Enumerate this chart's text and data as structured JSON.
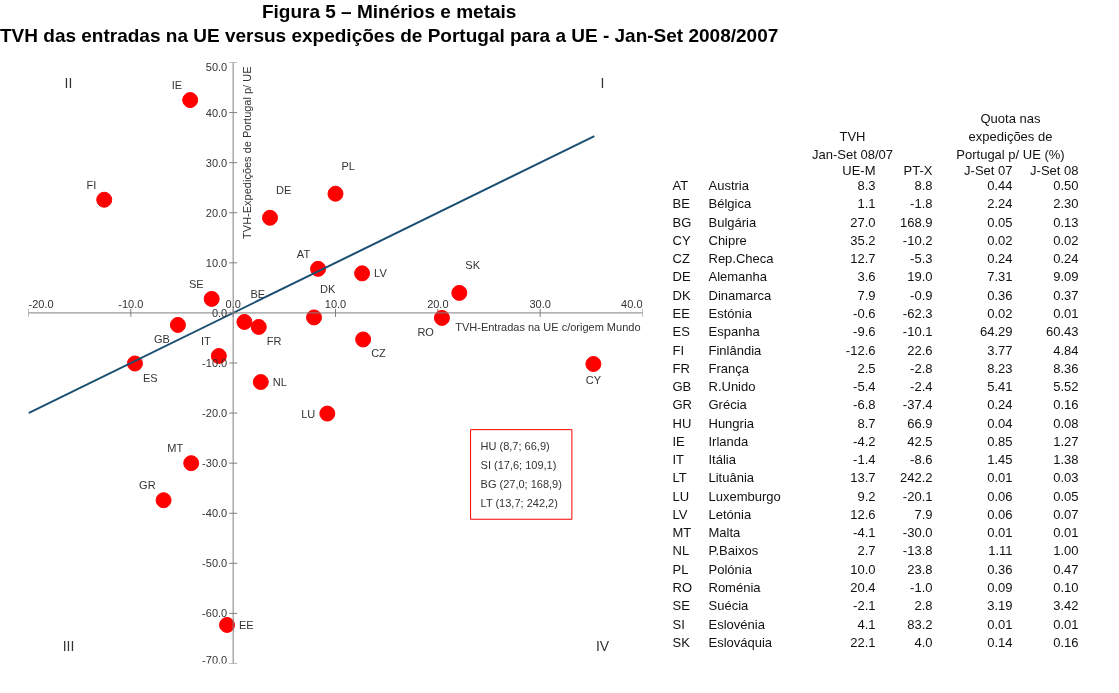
{
  "chart_data": [
    {
      "type": "scatter",
      "title": "Figura 5 – Minérios e metais",
      "subtitle": "TVH das entradas na UE versus expedições de Portugal para a UE - Jan-Set 2008/2007",
      "xlabel": "TVH-Entradas na UE c/origem Mundo",
      "ylabel": "TVH-Expedições de Portugal p/ UE",
      "xlim": [
        -20,
        40
      ],
      "ylim": [
        -70,
        50
      ],
      "xticks": [
        {
          "value": -20,
          "label": "-20.0"
        },
        {
          "value": -10,
          "label": "-10.0"
        },
        {
          "value": 0,
          "label": "0.0"
        },
        {
          "value": 10,
          "label": "10.0"
        },
        {
          "value": 20,
          "label": "20.0"
        },
        {
          "value": 30,
          "label": "30.0"
        },
        {
          "value": 40,
          "label": "40.0"
        }
      ],
      "yticks": [
        {
          "value": -70,
          "label": "-70.0"
        },
        {
          "value": -60,
          "label": "-60.0"
        },
        {
          "value": -50,
          "label": "-50.0"
        },
        {
          "value": -40,
          "label": "-40.0"
        },
        {
          "value": -30,
          "label": "-30.0"
        },
        {
          "value": -20,
          "label": "-20.0"
        },
        {
          "value": -10,
          "label": "-10.0"
        },
        {
          "value": 0,
          "label": "0.0"
        },
        {
          "value": 10,
          "label": "10.0"
        },
        {
          "value": 20,
          "label": "20.0"
        },
        {
          "value": 30,
          "label": "30.0"
        },
        {
          "value": 40,
          "label": "40.0"
        },
        {
          "value": 50,
          "label": "50.0"
        }
      ],
      "grid": false,
      "annotations": [
        "I",
        "II",
        "III",
        "IV",
        "HU (8,7; 66,9)\nSI (17,6; 109,1)\nBG (27,0; 168,9)\nLT (13,7; 242,2)"
      ],
      "series": [
        {
          "color": "#ff0000",
          "x": [
            8.3,
            1.1,
            35.2,
            12.7,
            3.6,
            7.9,
            -0.6,
            -9.6,
            -12.6,
            2.5,
            -5.4,
            -6.8,
            -4.2,
            -1.4,
            9.2,
            12.6,
            -4.1,
            2.7,
            10.0,
            20.4,
            -2.1,
            22.1
          ],
          "values": [
            8.8,
            -1.8,
            -10.2,
            -5.3,
            19.0,
            -0.9,
            -62.3,
            -10.1,
            22.6,
            -2.8,
            -2.4,
            -37.4,
            42.5,
            -8.6,
            -20.1,
            7.9,
            -30.0,
            -13.8,
            23.8,
            -1.0,
            2.8,
            4.0
          ],
          "value_labels": [
            "AT",
            "BE",
            "CY",
            "CZ",
            "DE",
            "DK",
            "EE",
            "ES",
            "FI",
            "FR",
            "GB",
            "GR",
            "IE",
            "IT",
            "LU",
            "LV",
            "MT",
            "NL",
            "PL",
            "RO",
            "SE",
            "SK"
          ]
        },
        {
          "type": "line",
          "color": "#1b4f72",
          "x": [
            -20,
            35.3
          ],
          "values": [
            -20,
            35.3
          ]
        }
      ]
    },
    {
      "type": "other",
      "annotations": [
        "TVH\nJan-Set 08/07",
        "Quota nas\nexpedições de\nPortugal p/ UE (%)"
      ],
      "categories": [
        "AT",
        "BE",
        "BG",
        "CY",
        "CZ",
        "DE",
        "DK",
        "EE",
        "ES",
        "FI",
        "FR",
        "GB",
        "GR",
        "HU",
        "IE",
        "IT",
        "LT",
        "LU",
        "LV",
        "MT",
        "NL",
        "PL",
        "RO",
        "SE",
        "SI",
        "SK"
      ],
      "y2_categories": [
        "Austria",
        "Bélgica",
        "Bulgária",
        "Chipre",
        "Rep.Checa",
        "Alemanha",
        "Dinamarca",
        "Estónia",
        "Espanha",
        "Finlândia",
        "França",
        "R.Unido",
        "Grécia",
        "Hungria",
        "Irlanda",
        "Itália",
        "Lituânia",
        "Luxemburgo",
        "Letónia",
        "Malta",
        "P.Baixos",
        "Polónia",
        "Roménia",
        "Suécia",
        "Eslovénia",
        "Eslováquia"
      ],
      "series": [
        {
          "name": "UE-M",
          "values": [
            8.3,
            1.1,
            27.0,
            35.2,
            12.7,
            3.6,
            7.9,
            -0.6,
            -9.6,
            -12.6,
            2.5,
            -5.4,
            -6.8,
            8.7,
            -4.2,
            -1.4,
            13.7,
            9.2,
            12.6,
            -4.1,
            2.7,
            10.0,
            20.4,
            -2.1,
            4.1,
            22.1
          ],
          "value_labels": [
            "8.3",
            "1.1",
            "27.0",
            "35.2",
            "12.7",
            "3.6",
            "7.9",
            "-0.6",
            "-9.6",
            "-12.6",
            "2.5",
            "-5.4",
            "-6.8",
            "8.7",
            "-4.2",
            "-1.4",
            "13.7",
            "9.2",
            "12.6",
            "-4.1",
            "2.7",
            "10.0",
            "20.4",
            "-2.1",
            "4.1",
            "22.1"
          ]
        },
        {
          "name": "PT-X",
          "values": [
            8.8,
            -1.8,
            168.9,
            -10.2,
            -5.3,
            19.0,
            -0.9,
            -62.3,
            -10.1,
            22.6,
            -2.8,
            -2.4,
            -37.4,
            66.9,
            42.5,
            -8.6,
            242.2,
            -20.1,
            7.9,
            -30.0,
            -13.8,
            23.8,
            -1.0,
            2.8,
            83.2,
            4.0
          ],
          "value_labels": [
            "8.8",
            "-1.8",
            "168.9",
            "-10.2",
            "-5.3",
            "19.0",
            "-0.9",
            "-62.3",
            "-10.1",
            "22.6",
            "-2.8",
            "-2.4",
            "-37.4",
            "66.9",
            "42.5",
            "-8.6",
            "242.2",
            "-20.1",
            "7.9",
            "-30.0",
            "-13.8",
            "23.8",
            "-1.0",
            "2.8",
            "83.2",
            "4.0"
          ]
        },
        {
          "name": "J-Set 07",
          "values": [
            0.44,
            2.24,
            0.05,
            0.02,
            0.24,
            7.31,
            0.36,
            0.02,
            64.29,
            3.77,
            8.23,
            5.41,
            0.24,
            0.04,
            0.85,
            1.45,
            0.01,
            0.06,
            0.06,
            0.01,
            1.11,
            0.36,
            0.09,
            3.19,
            0.01,
            0.14
          ],
          "value_labels": [
            "0.44",
            "2.24",
            "0.05",
            "0.02",
            "0.24",
            "7.31",
            "0.36",
            "0.02",
            "64.29",
            "3.77",
            "8.23",
            "5.41",
            "0.24",
            "0.04",
            "0.85",
            "1.45",
            "0.01",
            "0.06",
            "0.06",
            "0.01",
            "1.11",
            "0.36",
            "0.09",
            "3.19",
            "0.01",
            "0.14"
          ]
        },
        {
          "name": "J-Set 08",
          "values": [
            0.5,
            2.3,
            0.13,
            0.02,
            0.24,
            9.09,
            0.37,
            0.01,
            60.43,
            4.84,
            8.36,
            5.52,
            0.16,
            0.08,
            1.27,
            1.38,
            0.03,
            0.05,
            0.07,
            0.01,
            1.0,
            0.47,
            0.1,
            3.42,
            0.01,
            0.16
          ],
          "value_labels": [
            "0.50",
            "2.30",
            "0.13",
            "0.02",
            "0.24",
            "9.09",
            "0.37",
            "0.01",
            "60.43",
            "4.84",
            "8.36",
            "5.52",
            "0.16",
            "0.08",
            "1.27",
            "1.38",
            "0.03",
            "0.05",
            "0.07",
            "0.01",
            "1.00",
            "0.47",
            "0.10",
            "3.42",
            "0.01",
            "0.16"
          ]
        }
      ]
    }
  ]
}
